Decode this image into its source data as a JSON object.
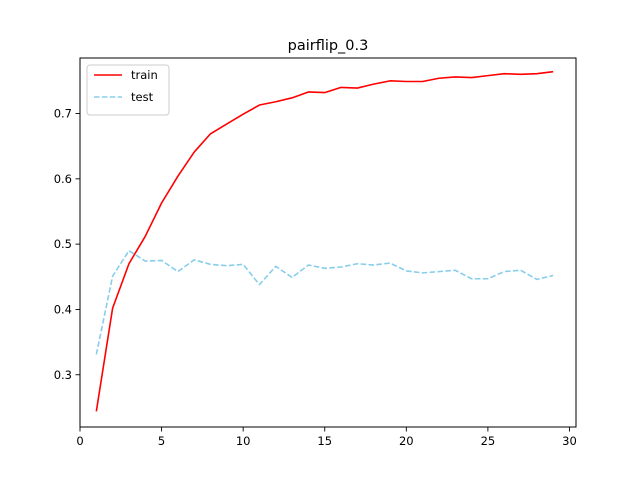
{
  "chart_data": {
    "type": "line",
    "title": "pairflip_0.3",
    "xlabel": "",
    "ylabel": "",
    "xlim": [
      0,
      30.4
    ],
    "ylim": [
      0.22,
      0.785
    ],
    "xticks": [
      0,
      5,
      10,
      15,
      20,
      25,
      30
    ],
    "yticks": [
      0.3,
      0.4,
      0.5,
      0.6,
      0.7
    ],
    "grid": false,
    "legend": "top-left",
    "x": [
      1,
      2,
      3,
      4,
      5,
      6,
      7,
      8,
      9,
      10,
      11,
      12,
      13,
      14,
      15,
      16,
      17,
      18,
      19,
      20,
      21,
      22,
      23,
      24,
      25,
      26,
      27,
      28,
      29
    ],
    "series": [
      {
        "name": "train",
        "color": "#ff0000",
        "style": "solid",
        "values": [
          0.244,
          0.402,
          0.47,
          0.512,
          0.563,
          0.604,
          0.641,
          0.669,
          0.684,
          0.699,
          0.713,
          0.718,
          0.724,
          0.733,
          0.732,
          0.74,
          0.739,
          0.745,
          0.75,
          0.749,
          0.749,
          0.754,
          0.756,
          0.755,
          0.758,
          0.761,
          0.76,
          0.761,
          0.764
        ]
      },
      {
        "name": "test",
        "color": "#87ceeb",
        "style": "dashed",
        "values": [
          0.331,
          0.451,
          0.49,
          0.474,
          0.475,
          0.458,
          0.476,
          0.469,
          0.467,
          0.469,
          0.438,
          0.466,
          0.449,
          0.468,
          0.463,
          0.465,
          0.47,
          0.468,
          0.471,
          0.459,
          0.456,
          0.458,
          0.46,
          0.447,
          0.447,
          0.458,
          0.46,
          0.446,
          0.452
        ]
      }
    ]
  }
}
